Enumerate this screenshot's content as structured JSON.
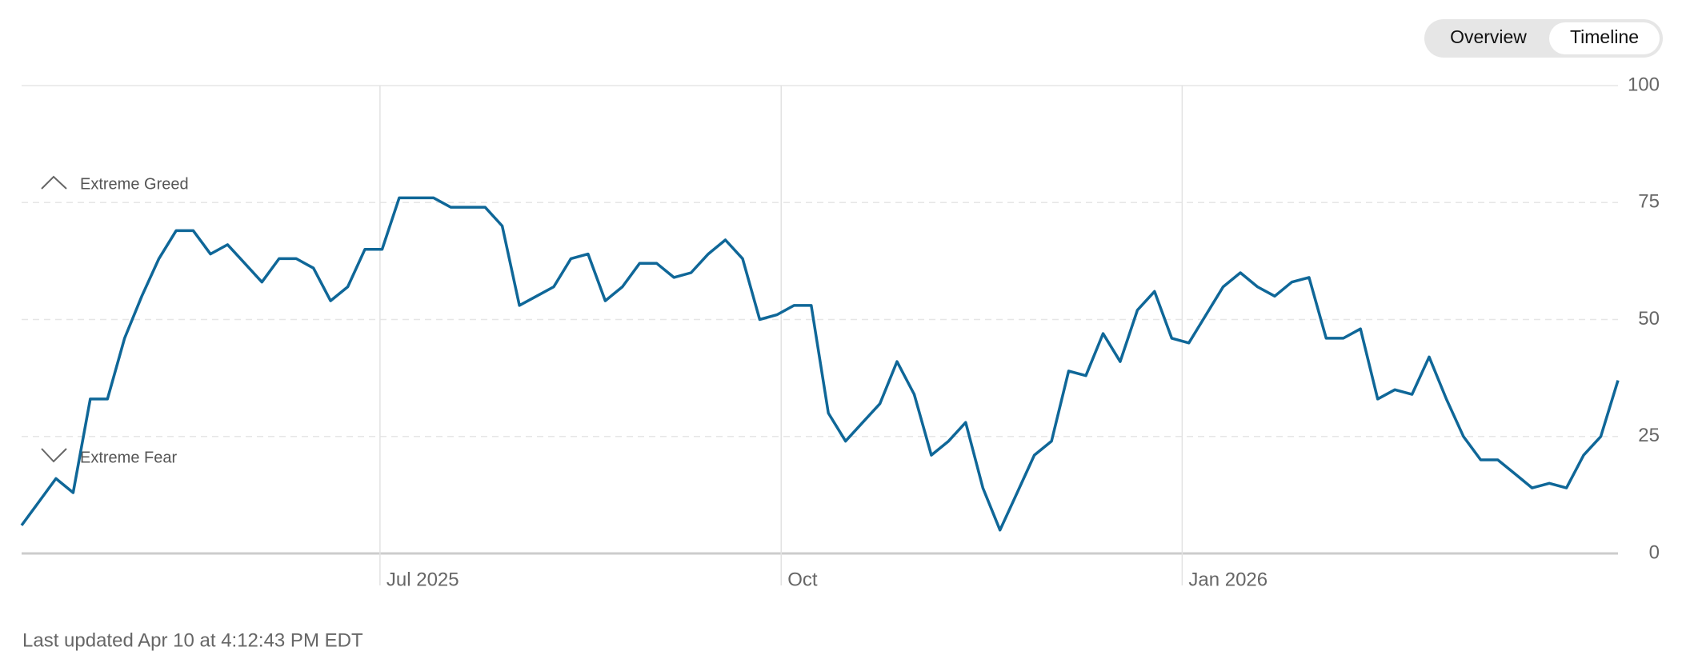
{
  "chart_data": {
    "type": "line",
    "tabs": [
      "Overview",
      "Timeline"
    ],
    "annotations": [
      "Extreme Greed",
      "Extreme Fear"
    ],
    "footer": "Last updated Apr 10 at 4:12:43 PM EDT",
    "xtick_labels": [
      "Jul 2025",
      "Oct",
      "Jan 2026"
    ],
    "ylim": [
      0,
      100
    ],
    "yticks": [
      0,
      25,
      50,
      75,
      100
    ],
    "grid": true,
    "color": "#0f6798",
    "values": [
      6,
      11,
      16,
      13,
      33,
      33,
      46,
      55,
      63,
      69,
      69,
      64,
      66,
      62,
      58,
      63,
      63,
      61,
      54,
      57,
      65,
      65,
      76,
      76,
      76,
      74,
      74,
      74,
      70,
      53,
      55,
      57,
      63,
      64,
      54,
      57,
      62,
      62,
      59,
      60,
      64,
      67,
      63,
      50,
      51,
      53,
      53,
      30,
      24,
      28,
      32,
      41,
      34,
      21,
      24,
      28,
      14,
      5,
      13,
      21,
      24,
      39,
      38,
      47,
      41,
      52,
      56,
      46,
      45,
      51,
      57,
      60,
      57,
      55,
      58,
      59,
      46,
      46,
      48,
      33,
      35,
      34,
      42,
      33,
      25,
      20,
      20,
      17,
      14,
      15,
      14,
      21,
      25,
      37
    ]
  }
}
